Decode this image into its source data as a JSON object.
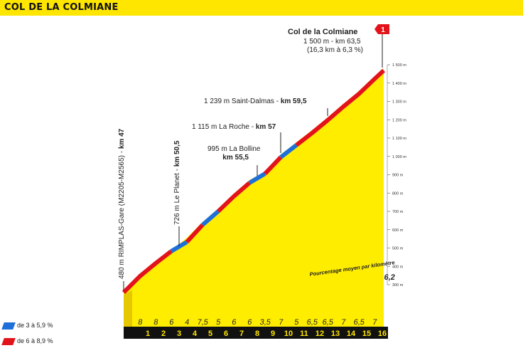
{
  "title": "COL DE LA COLMIANE",
  "summit": {
    "name": "Col de la Colmiane",
    "details": "1 500 m - km 63,5",
    "stats": "(16,3 km à 6,3 %)",
    "category": "1"
  },
  "waypoints": [
    {
      "id": "start",
      "text": "480 m RIMPLAS-Gare (M2205-M2565) - ",
      "km": "km 47"
    },
    {
      "id": "planet",
      "text": "726 m Le Planet - ",
      "km": "km 50,5"
    },
    {
      "id": "bolline",
      "text": "995 m La Bolline",
      "km": "km 55,5"
    },
    {
      "id": "roche",
      "text": "1 115 m La Roche - ",
      "km": "km 57"
    },
    {
      "id": "dalmas",
      "text": "1 239 m Saint-Dalmas - ",
      "km": "km 59,5"
    }
  ],
  "y_axis": {
    "ticks": [
      "300 m",
      "400 m",
      "500 m",
      "600 m",
      "700 m",
      "800 m",
      "900 m",
      "1 000 m",
      "1 100 m",
      "1 200 m",
      "1 300 m",
      "1 400 m",
      "1 500 m"
    ]
  },
  "gradient_caption": "Pourcentage moyen par kilomètre",
  "km_gradients": [
    "8",
    "8",
    "6",
    "4",
    "7,5",
    "5",
    "6",
    "6",
    "3,5",
    "7",
    "5",
    "6,5",
    "6,5",
    "7",
    "6,5",
    "7",
    "6,2"
  ],
  "km_numbers": [
    "1",
    "2",
    "3",
    "4",
    "5",
    "6",
    "7",
    "8",
    "9",
    "10",
    "11",
    "12",
    "13",
    "14",
    "15",
    "16"
  ],
  "legend": [
    {
      "label": "de 3 à 5,9 %",
      "color": "#1e6fd9"
    },
    {
      "label": "de 6 à 8,9 %",
      "color": "#e3131b"
    }
  ],
  "colors": {
    "header": "#ffe600",
    "profile": "#ffed00",
    "base": "#f5d800",
    "km_band": "#111111",
    "steep": "#e3131b",
    "moderate": "#1e6fd9"
  }
}
